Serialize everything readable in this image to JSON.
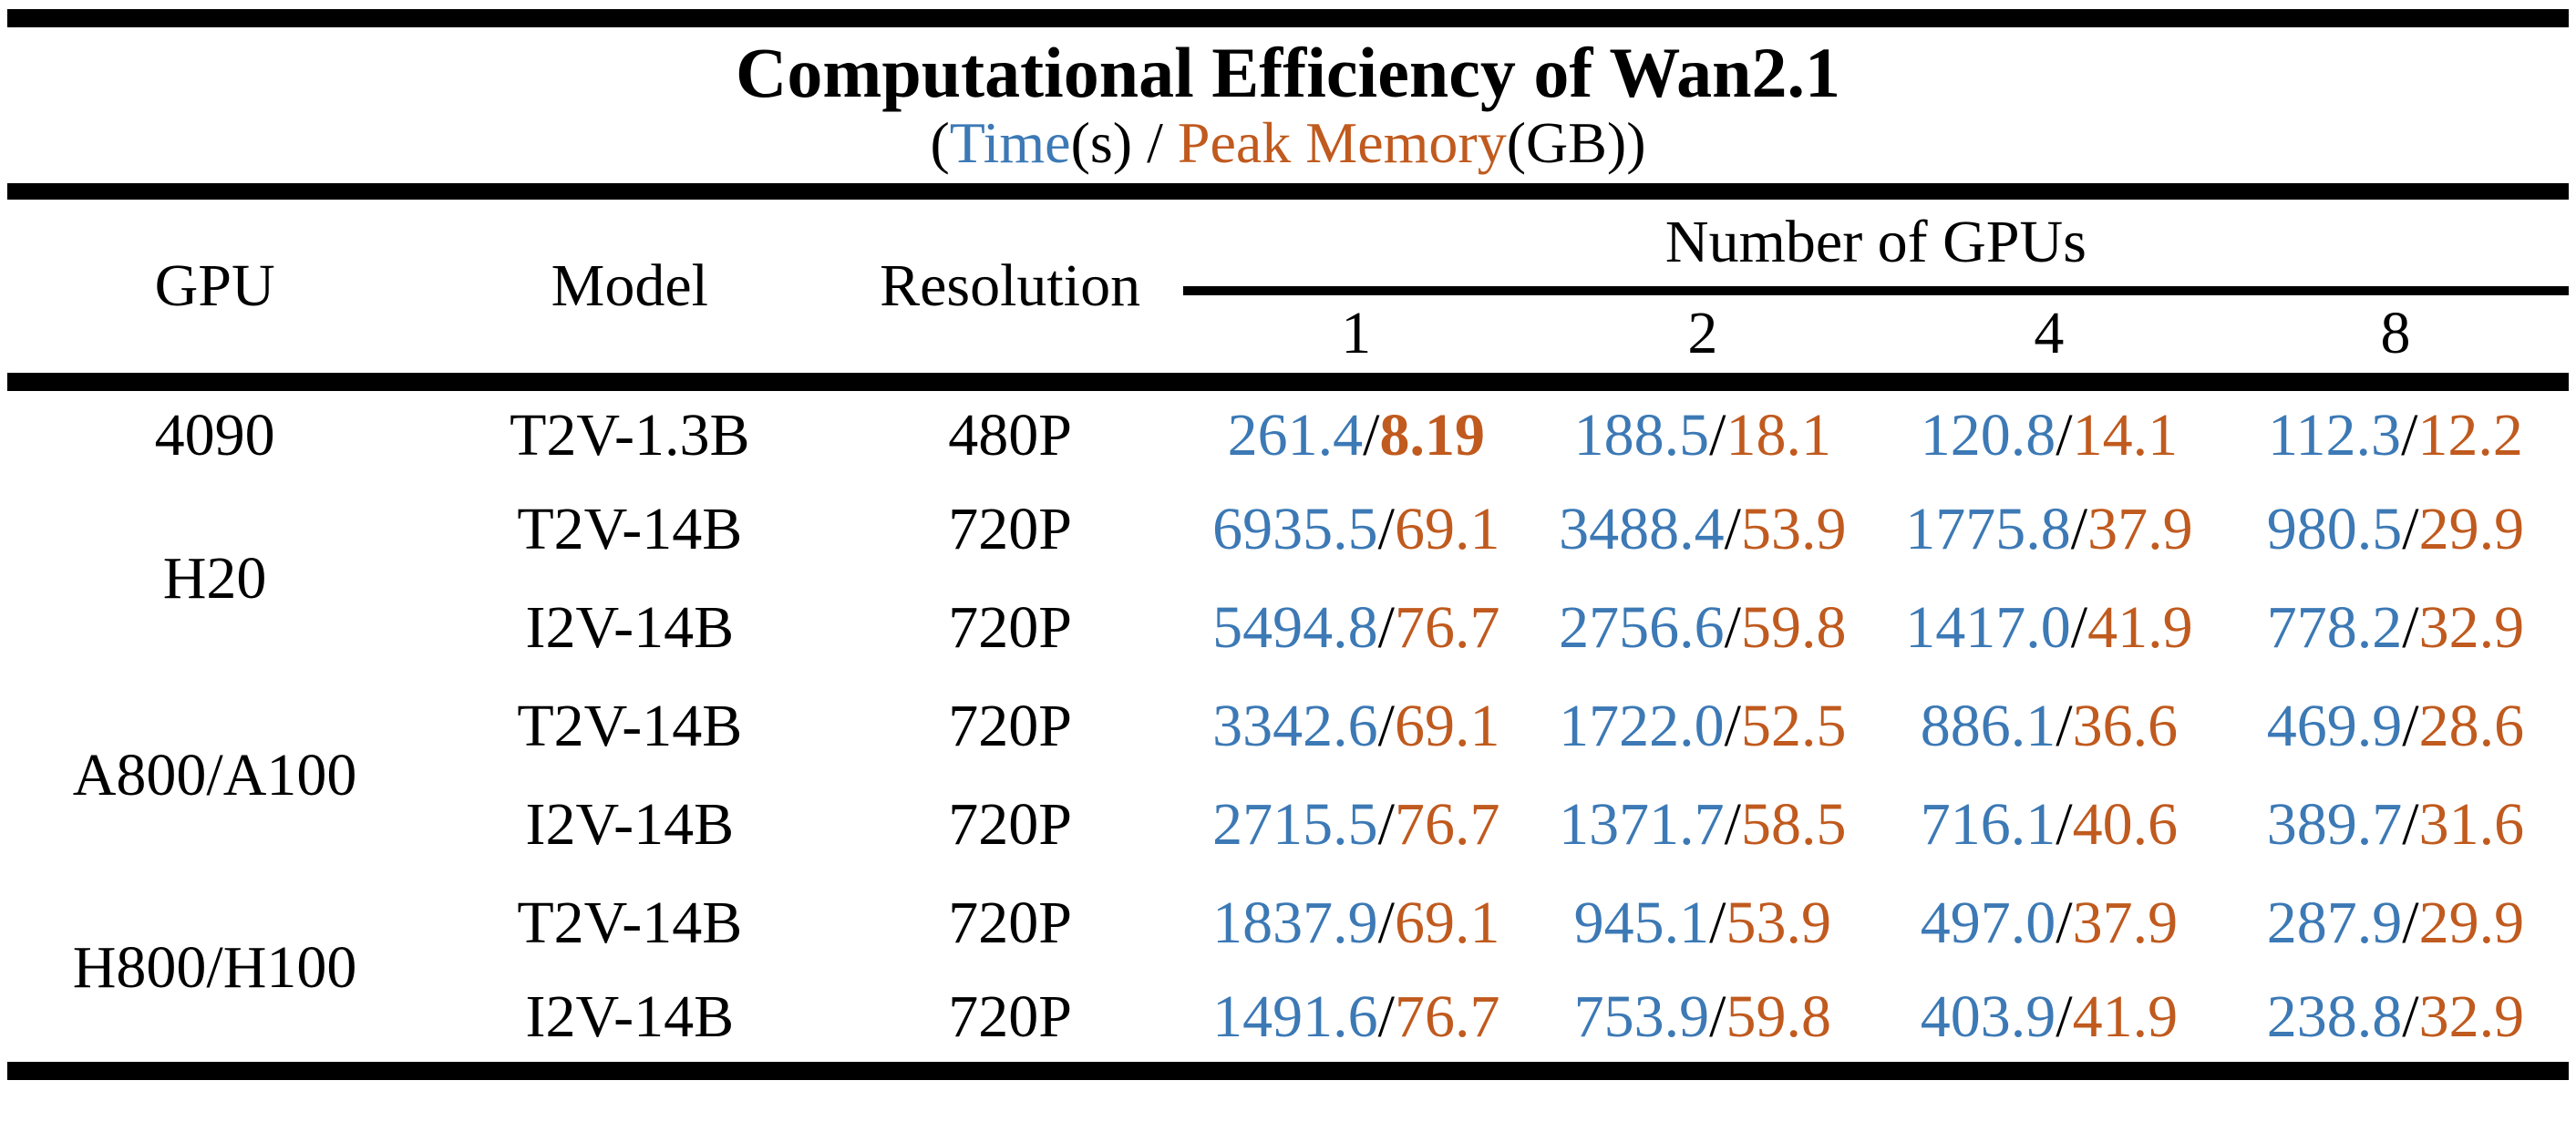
{
  "title": "Computational Efficiency of Wan2.1",
  "subtitle": {
    "open": "(",
    "time_label": "Time",
    "time_unit": "(s)",
    "separator": " / ",
    "memory_label": "Peak Memory",
    "memory_unit": "(GB))"
  },
  "cell_separator": "/",
  "colors": {
    "time_blue": "#3C79B5",
    "memory_orange": "#C05A1E",
    "rule_black": "#000000",
    "background": "#FFFFFF"
  },
  "header": {
    "gpu": "GPU",
    "model": "Model",
    "resolution": "Resolution",
    "gpus_group": "Number of GPUs",
    "gpu_counts": [
      "1",
      "2",
      "4",
      "8"
    ]
  },
  "chart_data": {
    "type": "table",
    "title": "Computational Efficiency of Wan2.1",
    "subtitle": "(Time(s) / Peak Memory(GB))",
    "columns": [
      "GPU",
      "Model",
      "Resolution",
      "1 GPU",
      "2 GPUs",
      "4 GPUs",
      "8 GPUs"
    ],
    "value_format": "time_seconds/peak_memory_gb",
    "rows": [
      {
        "gpu": "4090",
        "gpu_rowspan": 1,
        "model": "T2V-1.3B",
        "resolution": "480P",
        "cells": [
          {
            "time": "261.4",
            "memory": "8.19",
            "memory_bold": true
          },
          {
            "time": "188.5",
            "memory": "18.1"
          },
          {
            "time": "120.8",
            "memory": "14.1"
          },
          {
            "time": "112.3",
            "memory": "12.2"
          }
        ]
      },
      {
        "gpu": "H20",
        "gpu_rowspan": 2,
        "model": "T2V-14B",
        "resolution": "720P",
        "cells": [
          {
            "time": "6935.5",
            "memory": "69.1"
          },
          {
            "time": "3488.4",
            "memory": "53.9"
          },
          {
            "time": "1775.8",
            "memory": "37.9"
          },
          {
            "time": "980.5",
            "memory": "29.9"
          }
        ]
      },
      {
        "gpu": "",
        "model": "I2V-14B",
        "resolution": "720P",
        "cells": [
          {
            "time": "5494.8",
            "memory": "76.7"
          },
          {
            "time": "2756.6",
            "memory": "59.8"
          },
          {
            "time": "1417.0",
            "memory": "41.9"
          },
          {
            "time": "778.2",
            "memory": "32.9"
          }
        ]
      },
      {
        "gpu": "A800/A100",
        "gpu_rowspan": 2,
        "model": "T2V-14B",
        "resolution": "720P",
        "cells": [
          {
            "time": "3342.6",
            "memory": "69.1"
          },
          {
            "time": "1722.0",
            "memory": "52.5"
          },
          {
            "time": "886.1",
            "memory": "36.6"
          },
          {
            "time": "469.9",
            "memory": "28.6"
          }
        ]
      },
      {
        "gpu": "",
        "model": "I2V-14B",
        "resolution": "720P",
        "cells": [
          {
            "time": "2715.5",
            "memory": "76.7"
          },
          {
            "time": "1371.7",
            "memory": "58.5"
          },
          {
            "time": "716.1",
            "memory": "40.6"
          },
          {
            "time": "389.7",
            "memory": "31.6"
          }
        ]
      },
      {
        "gpu": "H800/H100",
        "gpu_rowspan": 2,
        "model": "T2V-14B",
        "resolution": "720P",
        "cells": [
          {
            "time": "1837.9",
            "memory": "69.1"
          },
          {
            "time": "945.1",
            "memory": "53.9"
          },
          {
            "time": "497.0",
            "memory": "37.9"
          },
          {
            "time": "287.9",
            "memory": "29.9"
          }
        ]
      },
      {
        "gpu": "",
        "model": "I2V-14B",
        "resolution": "720P",
        "cells": [
          {
            "time": "1491.6",
            "memory": "76.7"
          },
          {
            "time": "753.9",
            "memory": "59.8"
          },
          {
            "time": "403.9",
            "memory": "41.9"
          },
          {
            "time": "238.8",
            "memory": "32.9"
          }
        ]
      }
    ]
  }
}
